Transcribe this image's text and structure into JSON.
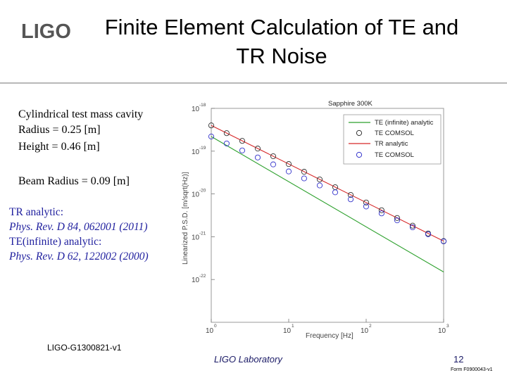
{
  "logo_text": "LIGO",
  "title": "Finite Element Calculation of TE and TR Noise",
  "description": {
    "line1": "Cylindrical test mass cavity",
    "line2": "Radius = 0.25 [m]",
    "line3": "Height = 0.46 [m]",
    "line4": "Beam Radius = 0.09 [m]"
  },
  "references": {
    "tr_label": "TR analytic:",
    "tr_cite": "Phys. Rev. D 84, 062001 (2011)",
    "te_label": "TE(infinite) analytic:",
    "te_cite": "Phys. Rev. D 62, 122002 (2000)"
  },
  "footer": {
    "doc_id": "LIGO-G1300821-v1",
    "lab": "LIGO Laboratory",
    "page": "12",
    "form": "Form F0900043-v1"
  },
  "colors": {
    "te_series": "#2ca02c",
    "tr_series": "#d62728",
    "te_comsol": "#333333",
    "tr_comsol": "#3333cc",
    "text_blue": "#1f1f9e"
  },
  "chart_data": {
    "type": "line",
    "title": "Sapphire 300K",
    "xlabel": "Frequency [Hz]",
    "ylabel": "Linearized P.S.D. [m/sqrt(Hz)]",
    "x_scale": "log",
    "y_scale": "log",
    "xlim": [
      1,
      1000
    ],
    "ylim": [
      1e-23,
      1e-18
    ],
    "x_ticks": [
      {
        "base": "10",
        "exp": "0"
      },
      {
        "base": "10",
        "exp": "1"
      },
      {
        "base": "10",
        "exp": "2"
      },
      {
        "base": "10",
        "exp": "3"
      }
    ],
    "y_ticks": [
      {
        "base": "10",
        "exp": "-18"
      },
      {
        "base": "10",
        "exp": "-19"
      },
      {
        "base": "10",
        "exp": "-20"
      },
      {
        "base": "10",
        "exp": "-21"
      },
      {
        "base": "10",
        "exp": "-22"
      }
    ],
    "grid": false,
    "legend_position": "top-right",
    "series": [
      {
        "name": "TE (infinite) analytic",
        "kind": "line",
        "color": "#2ca02c",
        "x": [
          1,
          1000
        ],
        "y": [
          2.2e-19,
          1.5e-22
        ]
      },
      {
        "name": "TE COMSOL",
        "kind": "markers",
        "color": "#333333",
        "x": [
          1,
          1.58,
          2.51,
          3.98,
          6.31,
          10,
          15.8,
          25.1,
          39.8,
          63.1,
          100,
          158,
          251,
          398,
          631,
          1000
        ],
        "y": [
          4e-19,
          2.64e-19,
          1.74e-19,
          1.15e-19,
          7.6e-20,
          5e-20,
          3.3e-20,
          2.18e-20,
          1.44e-20,
          9.5e-21,
          6.3e-21,
          4.15e-21,
          2.74e-21,
          1.81e-21,
          1.19e-21,
          7.9e-22
        ]
      },
      {
        "name": "TR analytic",
        "kind": "line",
        "color": "#d62728",
        "x": [
          1,
          1000
        ],
        "y": [
          4e-19,
          7.9e-22
        ]
      },
      {
        "name": "TE COMSOL",
        "kind": "markers",
        "color": "#3333cc",
        "x": [
          1,
          1.58,
          2.51,
          3.98,
          6.31,
          10,
          15.8,
          25.1,
          39.8,
          63.1,
          100,
          158,
          251,
          398,
          631,
          1000
        ],
        "y": [
          2.2e-19,
          1.51e-19,
          1.04e-19,
          7.1e-20,
          4.9e-20,
          3.36e-20,
          2.31e-20,
          1.58e-20,
          1.09e-20,
          7.5e-21,
          5.1e-21,
          3.52e-21,
          2.42e-21,
          1.66e-21,
          1.14e-21,
          7.8e-22
        ]
      }
    ]
  }
}
